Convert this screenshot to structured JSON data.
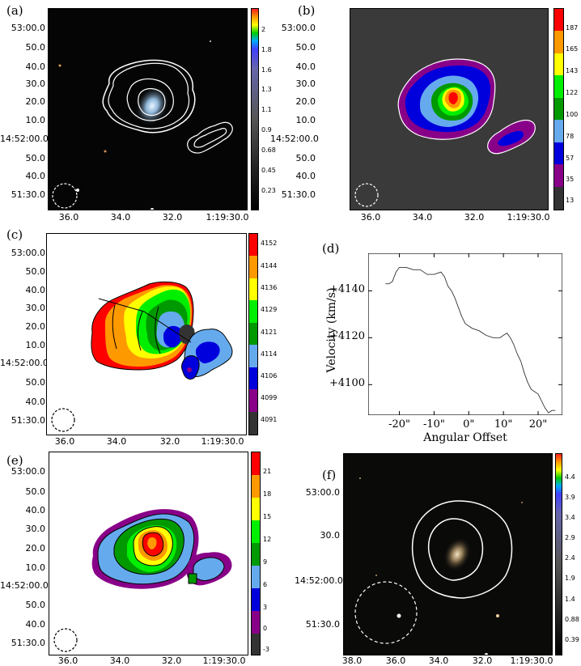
{
  "panels": {
    "a": {
      "label": "(a)",
      "yticks": [
        "53:00.0",
        "50.0",
        "40.0",
        "30.0",
        "20.0",
        "10.0",
        "14:52:00.0",
        "50.0",
        "40.0",
        "51:30.0"
      ],
      "xticks": [
        "36.0",
        "34.0",
        "32.0",
        "1:19:30.0"
      ],
      "colorbar": {
        "ticks": [
          "2",
          "1.8",
          "1.6",
          "1.3",
          "1.1",
          "0.9",
          "0.68",
          "0.45",
          "0.23"
        ]
      }
    },
    "b": {
      "label": "(b)",
      "yticks": [
        "53:00.0",
        "50.0",
        "40.0",
        "30.0",
        "20.0",
        "10.0",
        "14:52:00.0",
        "50.0",
        "40.0",
        "51:30.0"
      ],
      "xticks": [
        "36.0",
        "34.0",
        "32.0",
        "1:19:30.0"
      ],
      "colorbar": {
        "ticks": [
          "187",
          "165",
          "143",
          "122",
          "100",
          "78",
          "57",
          "35",
          "13"
        ],
        "colors": [
          "#ff0000",
          "#ff9900",
          "#ffff00",
          "#00ee00",
          "#009900",
          "#66aaee",
          "#0000dd",
          "#880088",
          "#333333"
        ]
      }
    },
    "c": {
      "label": "(c)",
      "yticks": [
        "53:00.0",
        "50.0",
        "40.0",
        "30.0",
        "20.0",
        "10.0",
        "14:52:00.0",
        "50.0",
        "40.0",
        "51:30.0"
      ],
      "xticks": [
        "36.0",
        "34.0",
        "32.0",
        "1:19:30.0"
      ],
      "colorbar": {
        "ticks": [
          "4152",
          "4144",
          "4136",
          "4129",
          "4121",
          "4114",
          "4106",
          "4099",
          "4091"
        ],
        "colors": [
          "#ff0000",
          "#ff9900",
          "#ffff00",
          "#00ee00",
          "#009900",
          "#66aaee",
          "#0000dd",
          "#880088",
          "#333333"
        ]
      }
    },
    "e": {
      "label": "(e)",
      "yticks": [
        "53:00.0",
        "50.0",
        "40.0",
        "30.0",
        "20.0",
        "10.0",
        "14:52:00.0",
        "50.0",
        "40.0",
        "51:30.0"
      ],
      "xticks": [
        "36.0",
        "34.0",
        "32.0",
        "1:19:30.0"
      ],
      "colorbar": {
        "ticks": [
          "21",
          "18",
          "15",
          "12",
          "9",
          "6",
          "3",
          "0",
          "-3"
        ],
        "colors": [
          "#ff0000",
          "#ff9900",
          "#ffff00",
          "#00ee00",
          "#009900",
          "#66aaee",
          "#0000dd",
          "#880088",
          "#333333"
        ]
      }
    },
    "f": {
      "label": "(f)",
      "yticks": [
        "53:00.0",
        "30.0",
        "14:52:00.0",
        "51:30.0"
      ],
      "xticks": [
        "38.0",
        "36.0",
        "34.0",
        "32.0",
        "1:19:30.0"
      ],
      "colorbar": {
        "ticks": [
          "4.4",
          "3.9",
          "3.4",
          "2.9",
          "2.4",
          "1.9",
          "1.4",
          "0.88",
          "0.39"
        ]
      }
    }
  },
  "chart_data": {
    "type": "line",
    "label": "(d)",
    "xlabel": "Angular Offset",
    "ylabel": "Velocity (km/s)",
    "xticks": [
      "-20\"",
      "-10\"",
      "0\"",
      "10\"",
      "20\""
    ],
    "yticks": [
      "+4140",
      "+4120",
      "+4100"
    ],
    "xlim": [
      -29,
      27
    ],
    "ylim": [
      4087,
      4156
    ],
    "x": [
      -24,
      -23,
      -22,
      -21,
      -20,
      -18,
      -16,
      -14,
      -12,
      -10,
      -8,
      -7,
      -6,
      -5,
      -4,
      -3,
      -2,
      -1,
      0,
      1,
      3,
      5,
      7,
      9,
      10,
      11,
      12,
      13,
      14,
      15,
      16,
      17,
      18,
      19,
      20,
      21,
      22,
      23,
      24,
      25
    ],
    "y": [
      4143,
      4143,
      4144,
      4148,
      4150,
      4150,
      4149,
      4149,
      4147,
      4147,
      4148,
      4146,
      4142,
      4140,
      4137,
      4133,
      4129,
      4126,
      4125,
      4124,
      4123,
      4121,
      4120,
      4120,
      4121,
      4122,
      4120,
      4117,
      4113,
      4110,
      4105,
      4101,
      4098,
      4097,
      4096,
      4093,
      4090,
      4088,
      4089,
      4089
    ]
  }
}
